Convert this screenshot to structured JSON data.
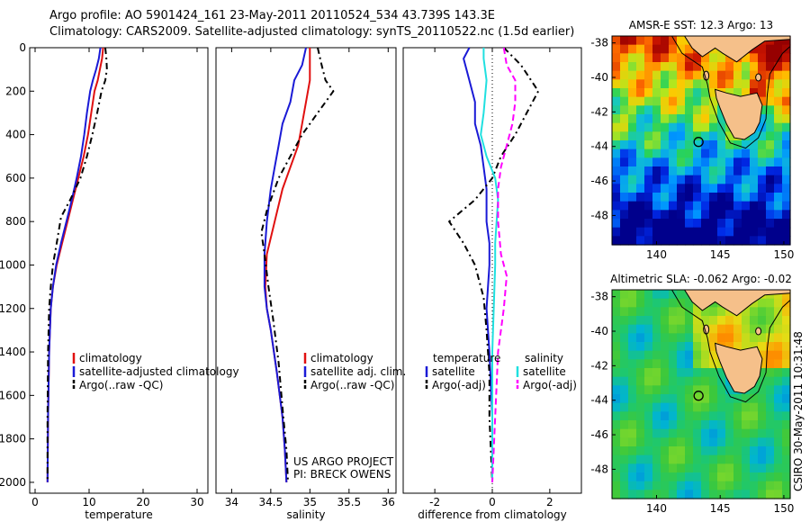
{
  "figure": {
    "title_line1": "Argo profile: AO 5901424_161 23-May-2011 20110524_534 43.739S 143.3E",
    "title_line2": "Climatology: CARS2009. Satellite-adjusted climatology: synTS_20110522.nc (1.5d earlier)",
    "side_stamp": "CSIRO 30-May-2011 10:31:48",
    "credit_line1": "US ARGO PROJECT",
    "credit_line2": "PI: BRECK OWENS"
  },
  "colors": {
    "climatology": "#e01010",
    "satellite": "#1a1ad6",
    "argo": "#000000",
    "sal_satellite": "#20e0e0",
    "sal_argo": "#ff00ff",
    "land": "#f5c08a"
  },
  "chart_data": [
    {
      "type": "line",
      "xlabel": "temperature",
      "ylabel": "",
      "xlim": [
        -1,
        32
      ],
      "ylim": [
        2050,
        0
      ],
      "xticks": [
        0,
        10,
        20,
        30
      ],
      "yticks": [
        0,
        200,
        400,
        600,
        800,
        1000,
        1200,
        1400,
        1600,
        1800,
        2000
      ],
      "legend": [
        "climatology",
        "satellite-adjusted climatology",
        "Argo(..raw -QC)"
      ],
      "series": [
        {
          "name": "climatology",
          "color": "#e01010",
          "dash": "",
          "x": [
            12.6,
            12.4,
            12.0,
            11.6,
            11.0,
            10.4,
            9.8,
            9.0,
            8.0,
            7.0,
            6.0,
            5.0,
            4.0,
            3.3,
            2.9,
            2.6,
            2.4,
            2.3
          ],
          "y": [
            0,
            50,
            100,
            150,
            200,
            300,
            400,
            500,
            600,
            700,
            800,
            900,
            1000,
            1100,
            1200,
            1400,
            1700,
            2000
          ]
        },
        {
          "name": "satellite-adjusted climatology",
          "color": "#1a1ad6",
          "dash": "",
          "x": [
            12.1,
            11.8,
            11.3,
            10.7,
            10.2,
            9.6,
            9.1,
            8.5,
            7.7,
            6.8,
            5.8,
            4.8,
            3.9,
            3.3,
            2.9,
            2.6,
            2.4,
            2.3
          ],
          "y": [
            0,
            50,
            100,
            150,
            200,
            300,
            400,
            500,
            600,
            700,
            800,
            900,
            1000,
            1100,
            1200,
            1400,
            1700,
            2000
          ]
        },
        {
          "name": "Argo(..raw -QC)",
          "color": "#000000",
          "dash": "7,4,2,4",
          "x": [
            13.0,
            13.2,
            13.3,
            13.0,
            12.3,
            11.5,
            10.6,
            9.6,
            8.4,
            6.5,
            4.8,
            4.0,
            3.3,
            2.9,
            2.6,
            2.4,
            2.3,
            2.3
          ],
          "y": [
            0,
            50,
            100,
            150,
            200,
            300,
            400,
            500,
            600,
            700,
            780,
            900,
            1000,
            1100,
            1200,
            1400,
            1700,
            2000
          ]
        }
      ]
    },
    {
      "type": "line",
      "xlabel": "salinity",
      "ylabel": "",
      "xlim": [
        33.8,
        36.1
      ],
      "ylim": [
        2050,
        0
      ],
      "xticks": [
        34,
        34.5,
        35,
        35.5,
        36
      ],
      "yticks": [],
      "legend": [
        "climatology",
        "satellite adj. clim.",
        "Argo(..raw -QC)"
      ],
      "series": [
        {
          "name": "climatology",
          "color": "#e01010",
          "dash": "",
          "x": [
            35.0,
            35.0,
            35.0,
            34.95,
            34.9,
            34.85,
            34.75,
            34.65,
            34.55,
            34.45,
            34.43,
            34.45,
            34.5,
            34.58,
            34.65,
            34.68,
            34.7
          ],
          "y": [
            0,
            80,
            150,
            250,
            350,
            450,
            550,
            650,
            800,
            950,
            1100,
            1200,
            1300,
            1500,
            1700,
            1850,
            2000
          ]
        },
        {
          "name": "satellite adj. clim.",
          "color": "#1a1ad6",
          "dash": "",
          "x": [
            34.95,
            34.9,
            34.8,
            34.75,
            34.65,
            34.6,
            34.55,
            34.5,
            34.45,
            34.42,
            34.42,
            34.45,
            34.5,
            34.58,
            34.65,
            34.68,
            34.7
          ],
          "y": [
            0,
            80,
            150,
            250,
            350,
            450,
            550,
            650,
            800,
            950,
            1100,
            1200,
            1300,
            1500,
            1700,
            1850,
            2000
          ]
        },
        {
          "name": "Argo(..raw -QC)",
          "color": "#000000",
          "dash": "7,4,2,4",
          "x": [
            35.1,
            35.15,
            35.2,
            35.3,
            35.1,
            34.9,
            34.75,
            34.6,
            34.45,
            34.38,
            34.42,
            34.47,
            34.53,
            34.6,
            34.66,
            34.7,
            34.72
          ],
          "y": [
            0,
            80,
            150,
            200,
            300,
            400,
            500,
            600,
            750,
            850,
            950,
            1100,
            1250,
            1450,
            1700,
            1850,
            2000
          ]
        }
      ]
    },
    {
      "type": "line",
      "xlabel": "difference from climatology",
      "ylabel": "",
      "xlim": [
        -3.1,
        3.1
      ],
      "ylim": [
        2050,
        0
      ],
      "xticks": [
        -2,
        0,
        2
      ],
      "yticks": [],
      "legend_title_left": "temperature",
      "legend_title_right": "salinity",
      "legend": [
        "satellite",
        "Argo(-adj)",
        "satellite",
        "Argo(-adj)"
      ],
      "series": [
        {
          "name": "satellite",
          "color": "#1a1ad6",
          "dash": "",
          "x": [
            -0.8,
            -1.0,
            -0.9,
            -0.8,
            -0.6,
            -0.6,
            -0.4,
            -0.3,
            -0.2,
            -0.2,
            -0.1,
            -0.1,
            -0.2,
            -0.1,
            0.0,
            0.0
          ],
          "y": [
            0,
            50,
            100,
            150,
            250,
            350,
            450,
            550,
            650,
            800,
            900,
            1000,
            1200,
            1400,
            1700,
            2000
          ]
        },
        {
          "name": "Argo(-adj)",
          "color": "#000000",
          "dash": "7,4,2,4",
          "x": [
            0.4,
            1.0,
            1.6,
            1.2,
            0.8,
            0.3,
            0.0,
            -0.6,
            -1.5,
            -1.0,
            -0.6,
            -0.3,
            -0.2,
            -0.1,
            -0.1,
            0.0
          ],
          "y": [
            0,
            80,
            200,
            300,
            400,
            500,
            600,
            700,
            800,
            900,
            1000,
            1150,
            1300,
            1500,
            1700,
            2000
          ]
        },
        {
          "name": "sal satellite",
          "color": "#20e0e0",
          "dash": "",
          "x": [
            -0.3,
            -0.3,
            -0.2,
            -0.3,
            -0.4,
            -0.2,
            0.1,
            0.2,
            0.15,
            0.1,
            0.1,
            0.05,
            0.0,
            0.0,
            0.0
          ],
          "y": [
            0,
            50,
            150,
            300,
            400,
            500,
            600,
            700,
            800,
            900,
            1000,
            1200,
            1400,
            1700,
            2000
          ]
        },
        {
          "name": "sal Argo(-adj)",
          "color": "#ff00ff",
          "dash": "7,4",
          "x": [
            0.4,
            0.5,
            0.8,
            0.8,
            0.7,
            0.5,
            0.3,
            0.2,
            0.2,
            0.3,
            0.5,
            0.4,
            0.2,
            0.1,
            0.0
          ],
          "y": [
            0,
            80,
            150,
            250,
            350,
            450,
            550,
            650,
            800,
            950,
            1050,
            1200,
            1400,
            1700,
            2000
          ]
        }
      ]
    }
  ],
  "maps": [
    {
      "title": "AMSR-E SST: 12.3 Argo: 13",
      "xticks": [
        "140",
        "145",
        "150"
      ],
      "yticks": [
        "-38",
        "-40",
        "-42",
        "-44",
        "-46",
        "-48"
      ]
    },
    {
      "title": "Altimetric SLA: -0.062 Argo: -0.02",
      "xticks": [
        "140",
        "145",
        "150"
      ],
      "yticks": [
        "-38",
        "-40",
        "-42",
        "-44",
        "-46",
        "-48"
      ]
    }
  ]
}
